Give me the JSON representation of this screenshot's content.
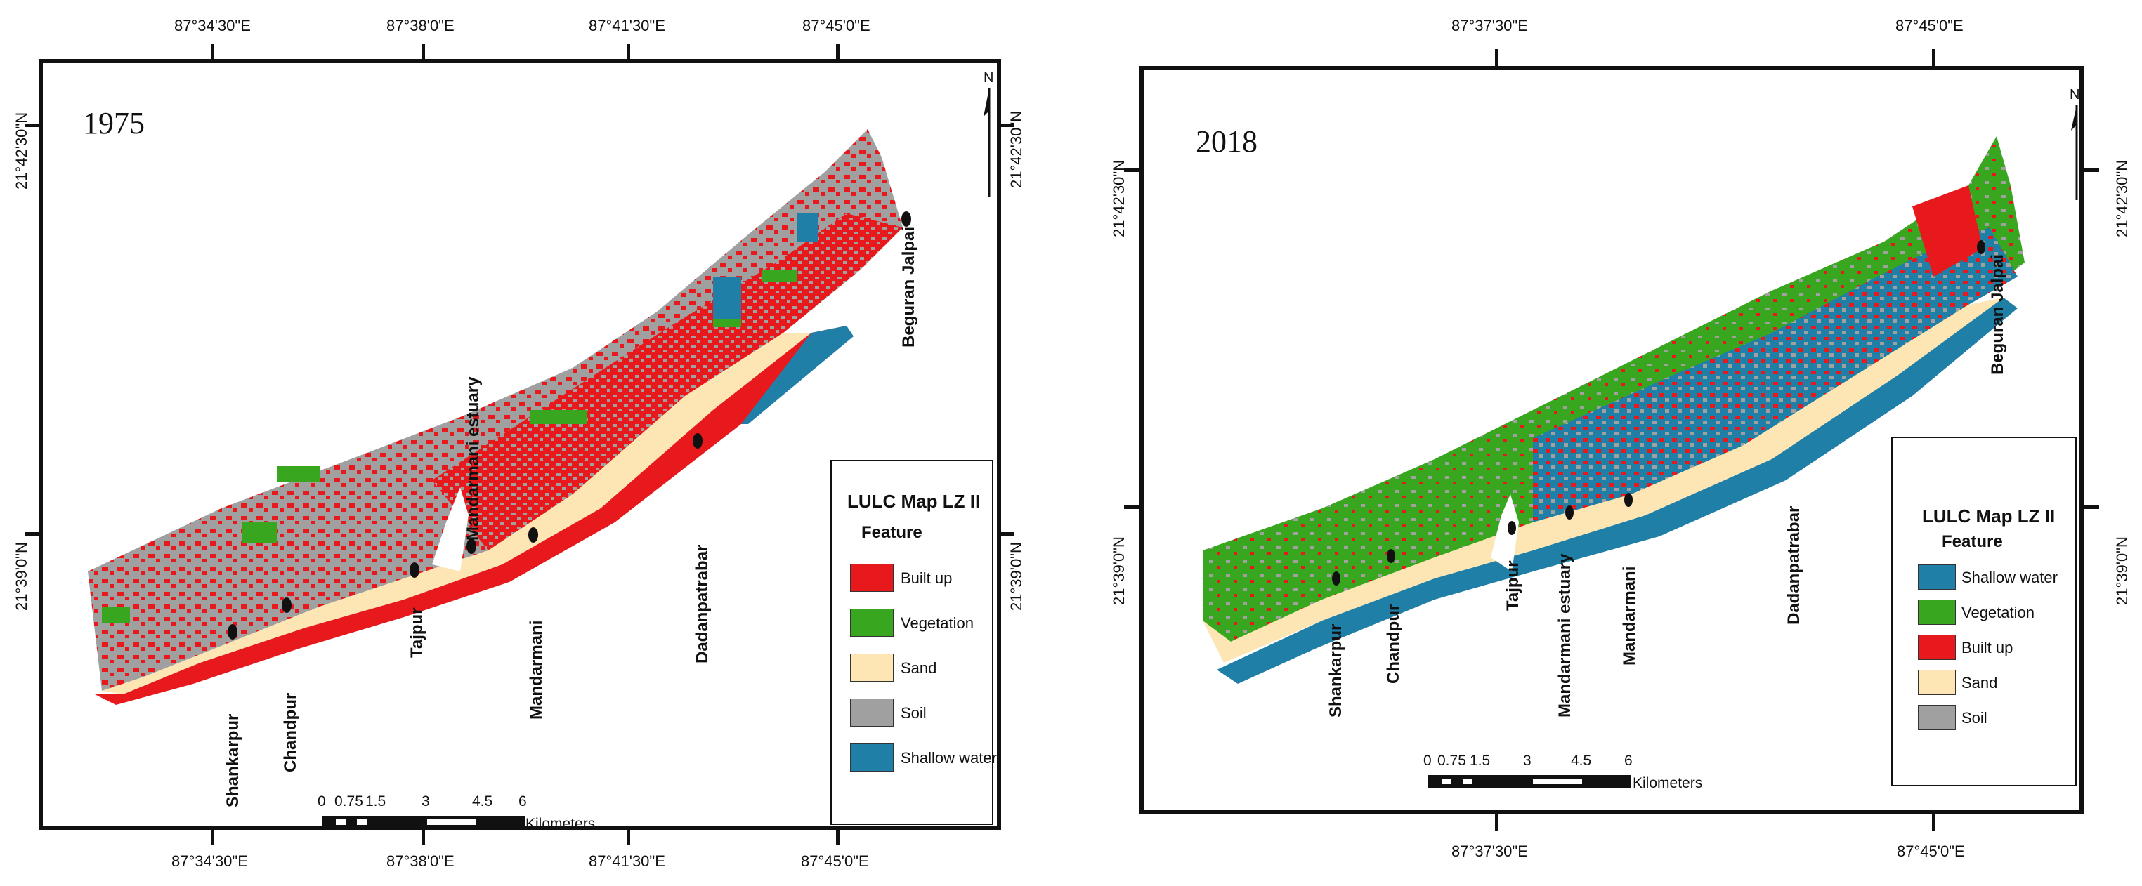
{
  "colors": {
    "built_up": "#e8191c",
    "vegetation": "#39a61f",
    "sand": "#fde6b4",
    "soil": "#a0a0a0",
    "shallow_water": "#1f7fa6"
  },
  "left": {
    "year": "1975",
    "top_ticks": [
      "87°34'30\"E",
      "87°38'0\"E",
      "87°41'30\"E",
      "87°45'0\"E"
    ],
    "bottom_ticks": [
      "87°34'30\"E",
      "87°38'0\"E",
      "87°41'30\"E",
      "87°45'0\"E"
    ],
    "left_ticks": [
      "21°42'30\"N",
      "21°39'0\"N"
    ],
    "right_ticks": [
      "21°42'30\"N",
      "21°39'0\"N"
    ],
    "places": [
      "Shankarpur",
      "Chandpur",
      "Tajpur",
      "Mandarmani estuary",
      "Mandarmani",
      "Dadanpatrabar",
      "Beguran Jalpai"
    ],
    "legend": {
      "title": "LULC Map LZ II",
      "subtitle": "Feature",
      "items": [
        {
          "label": "Built up",
          "color": "#e8191c"
        },
        {
          "label": "Vegetation",
          "color": "#39a61f"
        },
        {
          "label": "Sand",
          "color": "#fde6b4"
        },
        {
          "label": "Soil",
          "color": "#a0a0a0"
        },
        {
          "label": "Shallow water",
          "color": "#1f7fa6"
        }
      ]
    },
    "scale": {
      "ticks": [
        "0",
        "0.75",
        "1.5",
        "3",
        "4.5",
        "6"
      ],
      "unit": "Kilometers"
    },
    "north": "N"
  },
  "right": {
    "year": "2018",
    "top_ticks": [
      "87°37'30\"E",
      "87°45'0\"E"
    ],
    "bottom_ticks": [
      "87°37'30\"E",
      "87°45'0\"E"
    ],
    "left_ticks": [
      "21°42'30\"N",
      "21°39'0\"N"
    ],
    "right_ticks": [
      "21°42'30\"N",
      "21°39'0\"N"
    ],
    "places": [
      "Shankarpur",
      "Chandpur",
      "Tajpur",
      "Mandarmani estuary",
      "Mandarmani",
      "Dadanpatrabar",
      "Beguran Jalpai"
    ],
    "legend": {
      "title": "LULC Map LZ II",
      "subtitle": "Feature",
      "items": [
        {
          "label": "Shallow water",
          "color": "#1f7fa6"
        },
        {
          "label": "Vegetation",
          "color": "#39a61f"
        },
        {
          "label": "Built up",
          "color": "#e8191c"
        },
        {
          "label": "Sand",
          "color": "#fde6b4"
        },
        {
          "label": "Soil",
          "color": "#a0a0a0"
        }
      ]
    },
    "scale": {
      "ticks": [
        "0",
        "0.75",
        "1.5",
        "3",
        "4.5",
        "6"
      ],
      "unit": "Kilometers"
    },
    "north": "N"
  }
}
